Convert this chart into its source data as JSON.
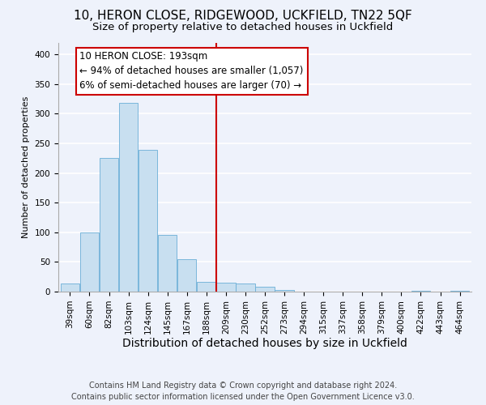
{
  "title": "10, HERON CLOSE, RIDGEWOOD, UCKFIELD, TN22 5QF",
  "subtitle": "Size of property relative to detached houses in Uckfield",
  "xlabel": "Distribution of detached houses by size in Uckfield",
  "ylabel": "Number of detached properties",
  "bar_labels": [
    "39sqm",
    "60sqm",
    "82sqm",
    "103sqm",
    "124sqm",
    "145sqm",
    "167sqm",
    "188sqm",
    "209sqm",
    "230sqm",
    "252sqm",
    "273sqm",
    "294sqm",
    "315sqm",
    "337sqm",
    "358sqm",
    "379sqm",
    "400sqm",
    "422sqm",
    "443sqm",
    "464sqm"
  ],
  "bar_heights": [
    13,
    100,
    225,
    318,
    239,
    95,
    54,
    17,
    15,
    13,
    8,
    3,
    0,
    0,
    0,
    0,
    0,
    0,
    2,
    0,
    2
  ],
  "bar_color": "#c8dff0",
  "bar_edge_color": "#6aaed6",
  "vline_x": 7.5,
  "vline_color": "#cc0000",
  "annotation_title": "10 HERON CLOSE: 193sqm",
  "annotation_line1": "← 94% of detached houses are smaller (1,057)",
  "annotation_line2": "6% of semi-detached houses are larger (70) →",
  "annotation_box_color": "#ffffff",
  "annotation_box_edge": "#cc0000",
  "ylim": [
    0,
    420
  ],
  "yticks": [
    0,
    50,
    100,
    150,
    200,
    250,
    300,
    350,
    400
  ],
  "footer_line1": "Contains HM Land Registry data © Crown copyright and database right 2024.",
  "footer_line2": "Contains public sector information licensed under the Open Government Licence v3.0.",
  "bg_color": "#eef2fb",
  "grid_color": "#ffffff",
  "title_fontsize": 11,
  "subtitle_fontsize": 9.5,
  "xlabel_fontsize": 10,
  "ylabel_fontsize": 8,
  "tick_fontsize": 7.5,
  "footer_fontsize": 7,
  "annot_fontsize": 8.5
}
